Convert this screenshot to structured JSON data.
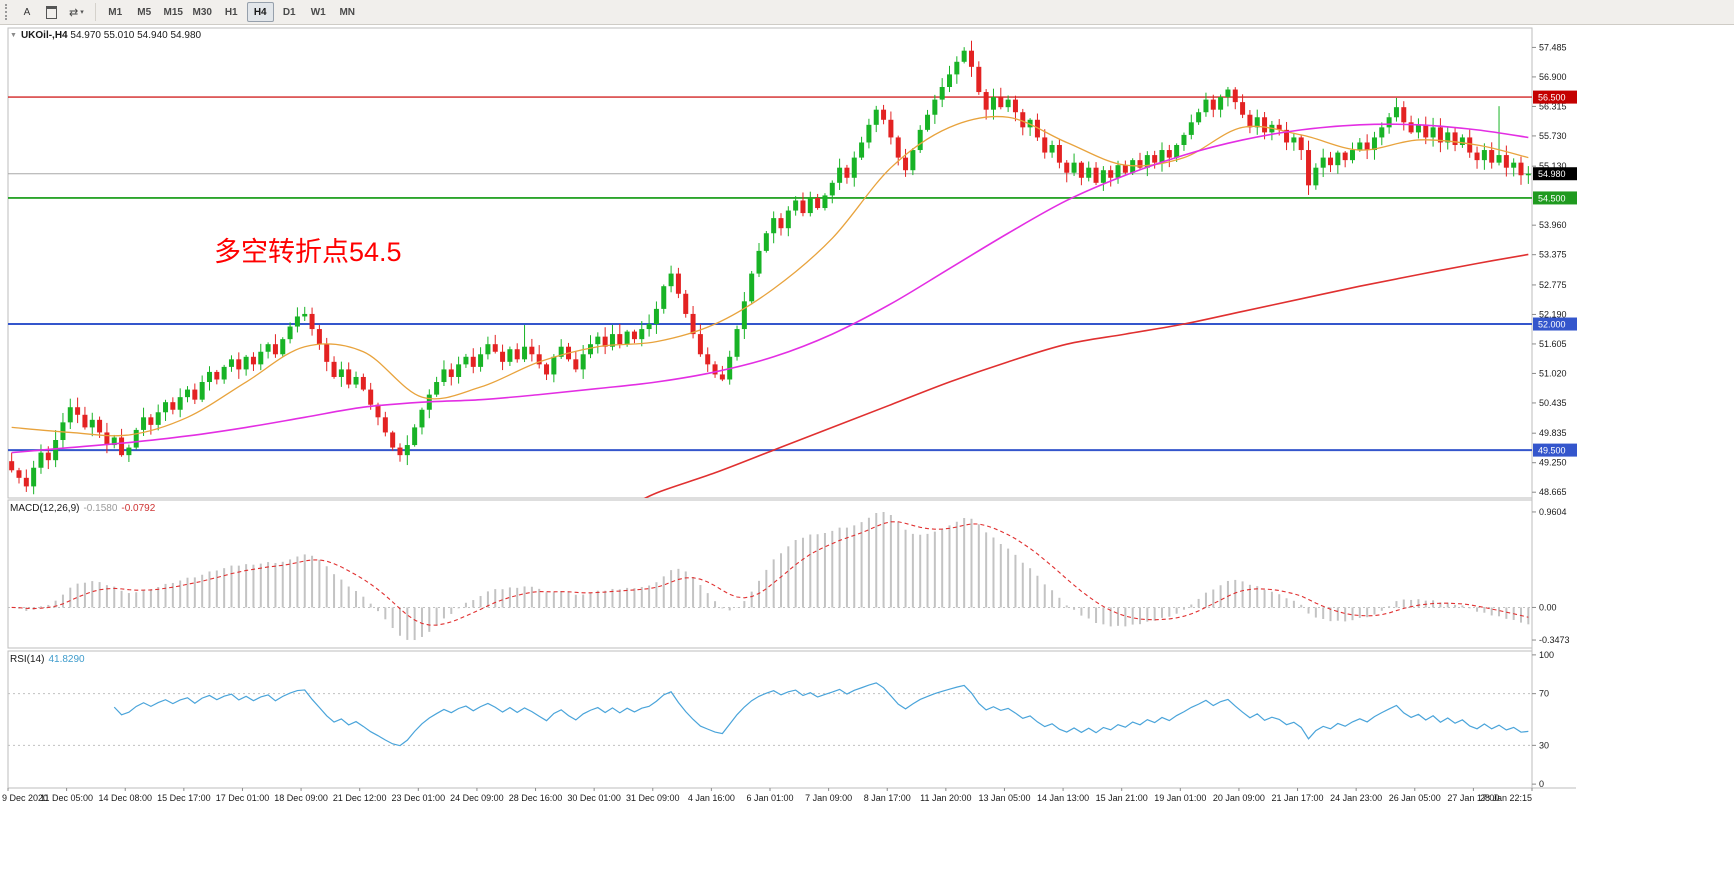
{
  "toolbar": {
    "arrow_button_label": "A",
    "timeframes": [
      "M1",
      "M5",
      "M15",
      "M30",
      "H1",
      "H4",
      "D1",
      "W1",
      "MN"
    ],
    "active_timeframe": "H4"
  },
  "icons": {
    "title_marker": "▼",
    "cycle": "⇄",
    "caret": "▾"
  },
  "chart": {
    "title": "UKOil-,H4",
    "ohlc_text": "54.970 55.010 54.940 54.980"
  },
  "chart_data": {
    "type": "candlestick",
    "symbol": "UKOil-",
    "period": "H4",
    "ylim": [
      48.55,
      57.87
    ],
    "open_first": 49.28,
    "closes": [
      49.1,
      48.95,
      48.78,
      49.15,
      49.45,
      49.3,
      49.7,
      50.05,
      50.35,
      50.2,
      49.95,
      50.1,
      49.85,
      49.6,
      49.75,
      49.4,
      49.55,
      49.9,
      50.15,
      50.0,
      50.25,
      50.45,
      50.3,
      50.55,
      50.7,
      50.5,
      50.85,
      51.05,
      50.9,
      51.15,
      51.3,
      51.1,
      51.35,
      51.2,
      51.45,
      51.6,
      51.4,
      51.7,
      51.95,
      52.15,
      52.2,
      51.9,
      51.6,
      51.25,
      50.95,
      51.1,
      50.8,
      50.95,
      50.7,
      50.4,
      50.15,
      49.85,
      49.55,
      49.4,
      49.6,
      49.95,
      50.3,
      50.6,
      50.85,
      51.1,
      50.95,
      51.2,
      51.35,
      51.15,
      51.4,
      51.6,
      51.45,
      51.25,
      51.5,
      51.3,
      51.55,
      51.4,
      51.2,
      51.0,
      51.35,
      51.55,
      51.3,
      51.1,
      51.4,
      51.6,
      51.75,
      51.55,
      51.8,
      51.6,
      51.85,
      51.7,
      51.9,
      52.0,
      52.3,
      52.75,
      53.0,
      52.6,
      52.2,
      51.8,
      51.4,
      51.2,
      51.0,
      50.9,
      51.35,
      51.9,
      52.45,
      53.0,
      53.45,
      53.8,
      54.1,
      53.9,
      54.25,
      54.45,
      54.2,
      54.5,
      54.3,
      54.55,
      54.8,
      55.1,
      54.9,
      55.3,
      55.6,
      55.95,
      56.25,
      56.05,
      55.7,
      55.3,
      55.05,
      55.45,
      55.85,
      56.15,
      56.45,
      56.7,
      56.95,
      57.2,
      57.42,
      57.1,
      56.6,
      56.25,
      56.5,
      56.3,
      56.45,
      56.2,
      55.9,
      56.05,
      55.7,
      55.4,
      55.55,
      55.2,
      55.0,
      55.2,
      54.9,
      55.1,
      54.8,
      55.05,
      54.9,
      55.15,
      55.0,
      55.25,
      55.1,
      55.35,
      55.2,
      55.45,
      55.3,
      55.55,
      55.75,
      56.0,
      56.2,
      56.45,
      56.25,
      56.5,
      56.65,
      56.4,
      56.15,
      55.9,
      56.1,
      55.8,
      55.95,
      55.85,
      55.6,
      55.7,
      55.45,
      54.75,
      55.1,
      55.3,
      55.15,
      55.4,
      55.25,
      55.45,
      55.6,
      55.45,
      55.7,
      55.9,
      56.1,
      56.3,
      56.0,
      55.8,
      55.95,
      55.7,
      55.9,
      55.6,
      55.8,
      55.55,
      55.7,
      55.4,
      55.25,
      55.45,
      55.2,
      55.35,
      55.1,
      55.2,
      54.95,
      54.98
    ],
    "wick_overrides": [
      {
        "i": 2,
        "l": 48.67
      },
      {
        "i": 40,
        "h": 52.34
      },
      {
        "i": 53,
        "l": 49.27
      },
      {
        "i": 70,
        "h": 51.98
      },
      {
        "i": 130,
        "h": 57.49
      },
      {
        "i": 177,
        "l": 54.56
      },
      {
        "i": 203,
        "h": 56.32
      }
    ],
    "up_color": "#18b326",
    "down_color": "#e32222",
    "price_ticks": [
      "57.485",
      "56.900",
      "56.315",
      "55.730",
      "55.130",
      "53.960",
      "53.375",
      "52.775",
      "52.190",
      "51.605",
      "51.020",
      "50.435",
      "49.835",
      "49.250",
      "48.665"
    ],
    "levels": [
      {
        "label": "56.500",
        "price": 56.5,
        "line_color": "#d22424",
        "badge_color": "#c40000",
        "width": 1.4
      },
      {
        "label": "54.500",
        "price": 54.5,
        "line_color": "#2ca52c",
        "badge_color": "#1f9a1f",
        "width": 1.8
      },
      {
        "label": "52.000",
        "price": 52.0,
        "line_color": "#3456cc",
        "badge_color": "#3456cc",
        "width": 2
      },
      {
        "label": "49.500",
        "price": 49.5,
        "line_color": "#3456cc",
        "badge_color": "#3456cc",
        "width": 2
      }
    ],
    "bid": {
      "label": "54.980",
      "price": 54.98,
      "line_color": "#a8a8a8",
      "badge_color": "#000000"
    },
    "annotation": {
      "text": "多空转折点54.5",
      "color": "#ff0000"
    },
    "moving_averages": [
      {
        "name": "ma-fast",
        "color": "#e8a33d",
        "width": 1.3,
        "anchors": [
          [
            0,
            49.95
          ],
          [
            8,
            49.85
          ],
          [
            16,
            49.8
          ],
          [
            24,
            50.15
          ],
          [
            32,
            50.85
          ],
          [
            40,
            51.55
          ],
          [
            48,
            51.45
          ],
          [
            56,
            50.55
          ],
          [
            64,
            50.75
          ],
          [
            72,
            51.25
          ],
          [
            80,
            51.55
          ],
          [
            88,
            51.65
          ],
          [
            96,
            52.0
          ],
          [
            104,
            52.7
          ],
          [
            112,
            53.7
          ],
          [
            120,
            55.1
          ],
          [
            128,
            55.9
          ],
          [
            136,
            56.1
          ],
          [
            144,
            55.6
          ],
          [
            152,
            55.15
          ],
          [
            160,
            55.3
          ],
          [
            168,
            55.9
          ],
          [
            176,
            55.75
          ],
          [
            184,
            55.45
          ],
          [
            192,
            55.65
          ],
          [
            200,
            55.55
          ],
          [
            207,
            55.3
          ]
        ]
      },
      {
        "name": "ma-mid",
        "color": "#e32ee3",
        "width": 1.6,
        "anchors": [
          [
            0,
            49.45
          ],
          [
            8,
            49.55
          ],
          [
            16,
            49.65
          ],
          [
            24,
            49.78
          ],
          [
            32,
            49.95
          ],
          [
            40,
            50.15
          ],
          [
            48,
            50.35
          ],
          [
            56,
            50.45
          ],
          [
            64,
            50.5
          ],
          [
            72,
            50.6
          ],
          [
            80,
            50.72
          ],
          [
            88,
            50.85
          ],
          [
            96,
            51.05
          ],
          [
            104,
            51.35
          ],
          [
            112,
            51.8
          ],
          [
            120,
            52.4
          ],
          [
            128,
            53.1
          ],
          [
            136,
            53.8
          ],
          [
            144,
            54.45
          ],
          [
            152,
            54.95
          ],
          [
            160,
            55.35
          ],
          [
            168,
            55.65
          ],
          [
            176,
            55.85
          ],
          [
            184,
            55.95
          ],
          [
            192,
            55.95
          ],
          [
            200,
            55.85
          ],
          [
            207,
            55.7
          ]
        ]
      },
      {
        "name": "ma-slow",
        "color": "#e03030",
        "width": 1.6,
        "anchors": [
          [
            84,
            48.35
          ],
          [
            88,
            48.65
          ],
          [
            96,
            49.05
          ],
          [
            104,
            49.5
          ],
          [
            112,
            49.95
          ],
          [
            120,
            50.4
          ],
          [
            128,
            50.85
          ],
          [
            136,
            51.25
          ],
          [
            144,
            51.6
          ],
          [
            152,
            51.8
          ],
          [
            160,
            52.0
          ],
          [
            168,
            52.25
          ],
          [
            176,
            52.5
          ],
          [
            184,
            52.75
          ],
          [
            192,
            52.98
          ],
          [
            200,
            53.2
          ],
          [
            207,
            53.38
          ]
        ]
      }
    ],
    "indicators": {
      "macd": {
        "name": "MACD(12,26,9)",
        "value_main": "-0.1580",
        "value_signal": "-0.0792",
        "params": [
          12,
          26,
          9
        ],
        "ticks": {
          "max": "0.9604",
          "zero": "0.00",
          "min": "-0.3473"
        },
        "histogram_color": "#c3c3c3",
        "signal_color": "#e03030"
      },
      "rsi": {
        "name": "RSI(14)",
        "value": "41.8290",
        "period": 14,
        "ticks": [
          "100",
          "70",
          "30",
          "0"
        ],
        "levels": [
          70,
          30
        ],
        "color": "#4aa4da"
      }
    },
    "x_labels": [
      "9 Dec 2020",
      "11 Dec 05:00",
      "14 Dec 08:00",
      "15 Dec 17:00",
      "17 Dec 01:00",
      "18 Dec 09:00",
      "21 Dec 12:00",
      "23 Dec 01:00",
      "24 Dec 09:00",
      "28 Dec 16:00",
      "30 Dec 01:00",
      "31 Dec 09:00",
      "4 Jan 16:00",
      "6 Jan 01:00",
      "7 Jan 09:00",
      "8 Jan 17:00",
      "11 Jan 20:00",
      "13 Jan 05:00",
      "14 Jan 13:00",
      "15 Jan 21:00",
      "19 Jan 01:00",
      "20 Jan 09:00",
      "21 Jan 17:00",
      "24 Jan 23:00",
      "26 Jan 05:00",
      "27 Jan 17:00",
      "28 Jan 22:15"
    ]
  }
}
